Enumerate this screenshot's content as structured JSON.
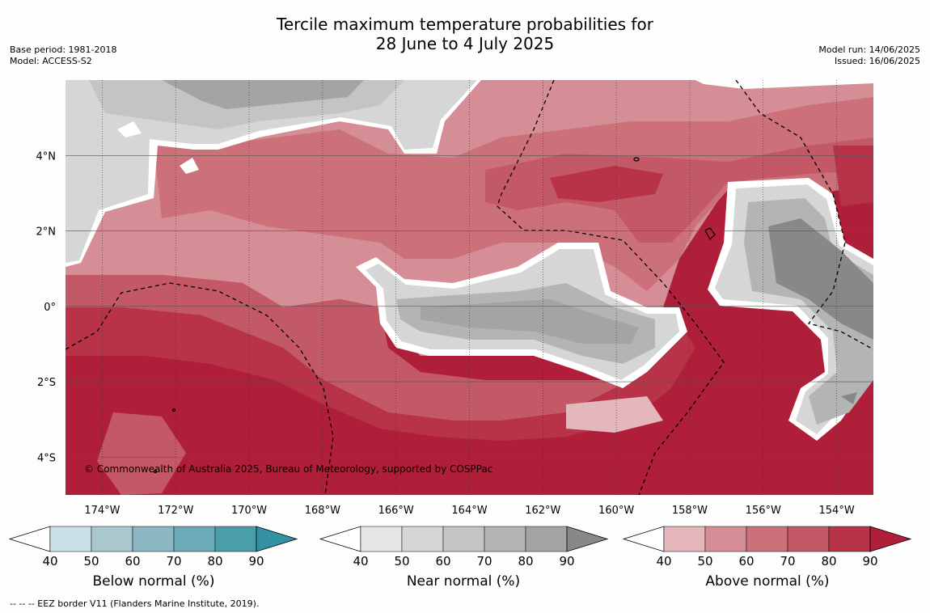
{
  "header": {
    "title_line1": "Tercile maximum temperature probabilities for",
    "title_line2": "28 June to 4 July 2025",
    "base_period": "Base period: 1981-2018",
    "model": "Model: ACCESS-S2",
    "model_run": "Model run: 14/06/2025",
    "issued": "Issued: 16/06/2025"
  },
  "map": {
    "copyright": "© Commonwealth of Australia 2025, Bureau of Meteorology, supported by COSPPac",
    "lat_labels": [
      "4°N",
      "2°N",
      "0°",
      "2°S",
      "4°S"
    ],
    "lon_labels": [
      "174°W",
      "172°W",
      "170°W",
      "168°W",
      "166°W",
      "164°W",
      "162°W",
      "160°W",
      "158°W",
      "156°W",
      "154°W"
    ],
    "lon_range": [
      -175,
      -153
    ],
    "lat_range": [
      -5,
      6
    ]
  },
  "colorbars": [
    {
      "title": "Below normal (%)",
      "ticks": [
        "40",
        "50",
        "60",
        "70",
        "80",
        "90"
      ],
      "colors": [
        "#ffffff",
        "#c9e1e7",
        "#a9c7cd",
        "#8bb7c3",
        "#6caab8",
        "#4a9dab",
        "#3292a3"
      ]
    },
    {
      "title": "Near normal (%)",
      "ticks": [
        "40",
        "50",
        "60",
        "70",
        "80",
        "90"
      ],
      "colors": [
        "#ffffff",
        "#e6e6e6",
        "#d6d6d6",
        "#c4c4c4",
        "#b4b4b4",
        "#a4a4a4",
        "#888888"
      ]
    },
    {
      "title": "Above normal (%)",
      "ticks": [
        "40",
        "50",
        "60",
        "70",
        "80",
        "90"
      ],
      "colors": [
        "#ffffff",
        "#e3b7bc",
        "#d68e96",
        "#cc7179",
        "#c35866",
        "#b83348",
        "#b01f3a"
      ]
    }
  ],
  "footnote": "--  --  -- EEZ border V11 (Flanders Marine Institute, 2019)."
}
